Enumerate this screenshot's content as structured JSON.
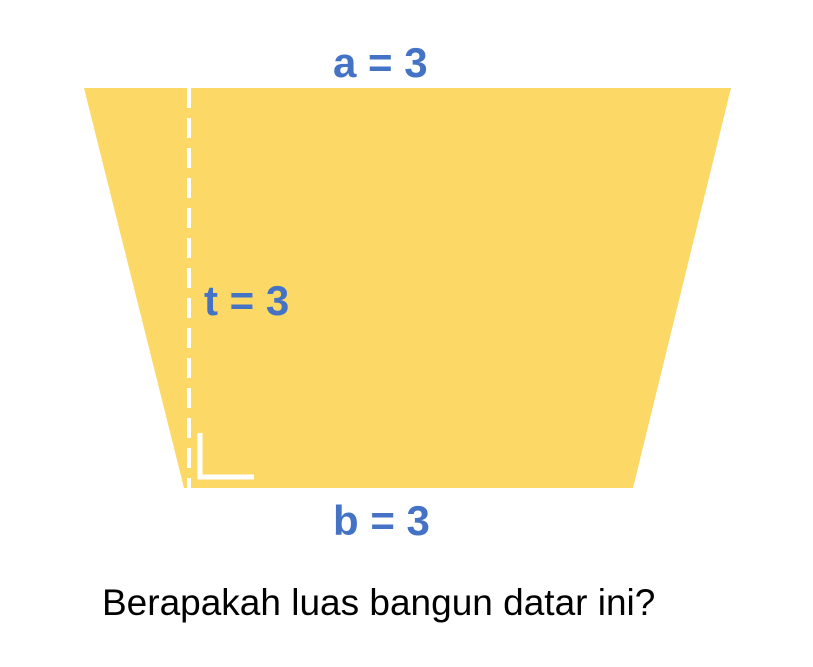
{
  "colors": {
    "shape_fill": "#FCD867",
    "label_color": "#4472C4",
    "marker_color": "#FFFFFF",
    "question_color": "#000000"
  },
  "shape": {
    "type": "trapezoid",
    "top_side_label": "a = 3",
    "height_label": "t = 3",
    "bottom_side_label": "b = 3"
  },
  "question": "Berapakah luas bangun datar ini?"
}
